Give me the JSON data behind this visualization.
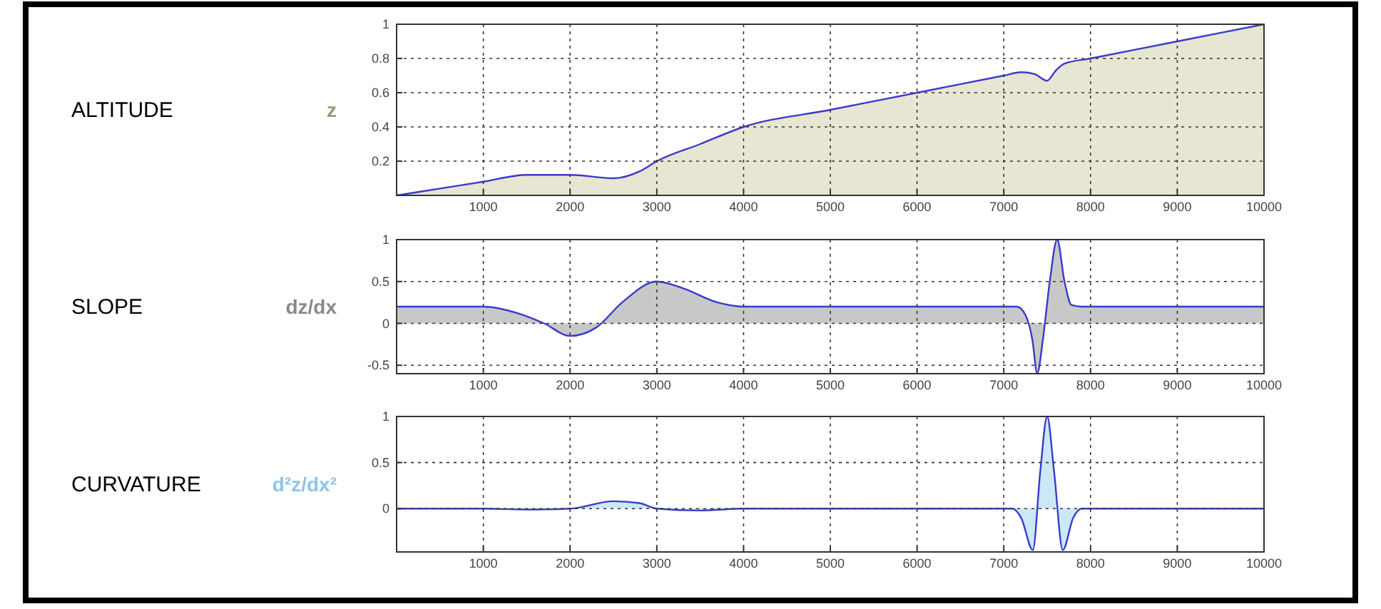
{
  "chart_data": [
    {
      "type": "area",
      "annotations": [
        "ALTITUDE"
      ],
      "ylabel": "z",
      "xlim": [
        0,
        10000
      ],
      "xticks": [
        1000,
        2000,
        3000,
        4000,
        5000,
        6000,
        7000,
        8000,
        9000,
        10000
      ],
      "ylim": [
        0,
        1
      ],
      "yticks": [
        0.2,
        0.4,
        0.6,
        0.8,
        1
      ],
      "grid": true,
      "x": [
        0,
        500,
        1000,
        1500,
        2000,
        2500,
        2800,
        3000,
        3500,
        4000,
        5000,
        6000,
        7000,
        7200,
        7350,
        7500,
        7600,
        7700,
        8000,
        9000,
        10000
      ],
      "series": [
        {
          "color": "#e6e6d2",
          "values": [
            0,
            0.04,
            0.08,
            0.12,
            0.12,
            0.1,
            0.14,
            0.2,
            0.3,
            0.4,
            0.5,
            0.6,
            0.7,
            0.72,
            0.71,
            0.67,
            0.73,
            0.77,
            0.8,
            0.9,
            1
          ]
        }
      ]
    },
    {
      "type": "area",
      "annotations": [
        "SLOPE"
      ],
      "ylabel": "dz/dx",
      "xlim": [
        0,
        10000
      ],
      "xticks": [
        1000,
        2000,
        3000,
        4000,
        5000,
        6000,
        7000,
        8000,
        9000,
        10000
      ],
      "ylim": [
        -0.6,
        1
      ],
      "yticks": [
        -0.5,
        0,
        0.5,
        1
      ],
      "grid": true,
      "x": [
        0,
        1000,
        1400,
        1700,
        2000,
        2300,
        2600,
        3000,
        3300,
        3700,
        4000,
        7150,
        7250,
        7330,
        7385,
        7450,
        7530,
        7615,
        7700,
        7780,
        7900,
        10000
      ],
      "series": [
        {
          "color": "#c8c8c8",
          "values": [
            0.2,
            0.2,
            0.12,
            0,
            -0.15,
            -0.05,
            0.25,
            0.5,
            0.42,
            0.25,
            0.2,
            0.2,
            0.1,
            -0.2,
            -0.6,
            -0.2,
            0.5,
            1,
            0.5,
            0.22,
            0.2,
            0.2
          ]
        }
      ]
    },
    {
      "type": "area",
      "annotations": [
        "CURVATURE"
      ],
      "ylabel": "d²z/dx²",
      "xlim": [
        0,
        10000
      ],
      "xticks": [
        1000,
        2000,
        3000,
        4000,
        5000,
        6000,
        7000,
        8000,
        9000,
        10000
      ],
      "ylim": [
        -0.47,
        1
      ],
      "yticks": [
        0,
        0.5,
        1
      ],
      "grid": true,
      "x": [
        0,
        1000,
        1500,
        2000,
        2500,
        2800,
        3000,
        3500,
        4000,
        7100,
        7200,
        7335,
        7420,
        7500,
        7580,
        7680,
        7800,
        7900,
        10000
      ],
      "series": [
        {
          "color": "#cce8f7",
          "values": [
            0,
            0,
            -0.01,
            0,
            0.08,
            0.06,
            0,
            -0.02,
            0,
            0,
            -0.1,
            -0.45,
            0.4,
            1,
            0.4,
            -0.45,
            -0.1,
            0,
            0
          ]
        }
      ]
    }
  ]
}
